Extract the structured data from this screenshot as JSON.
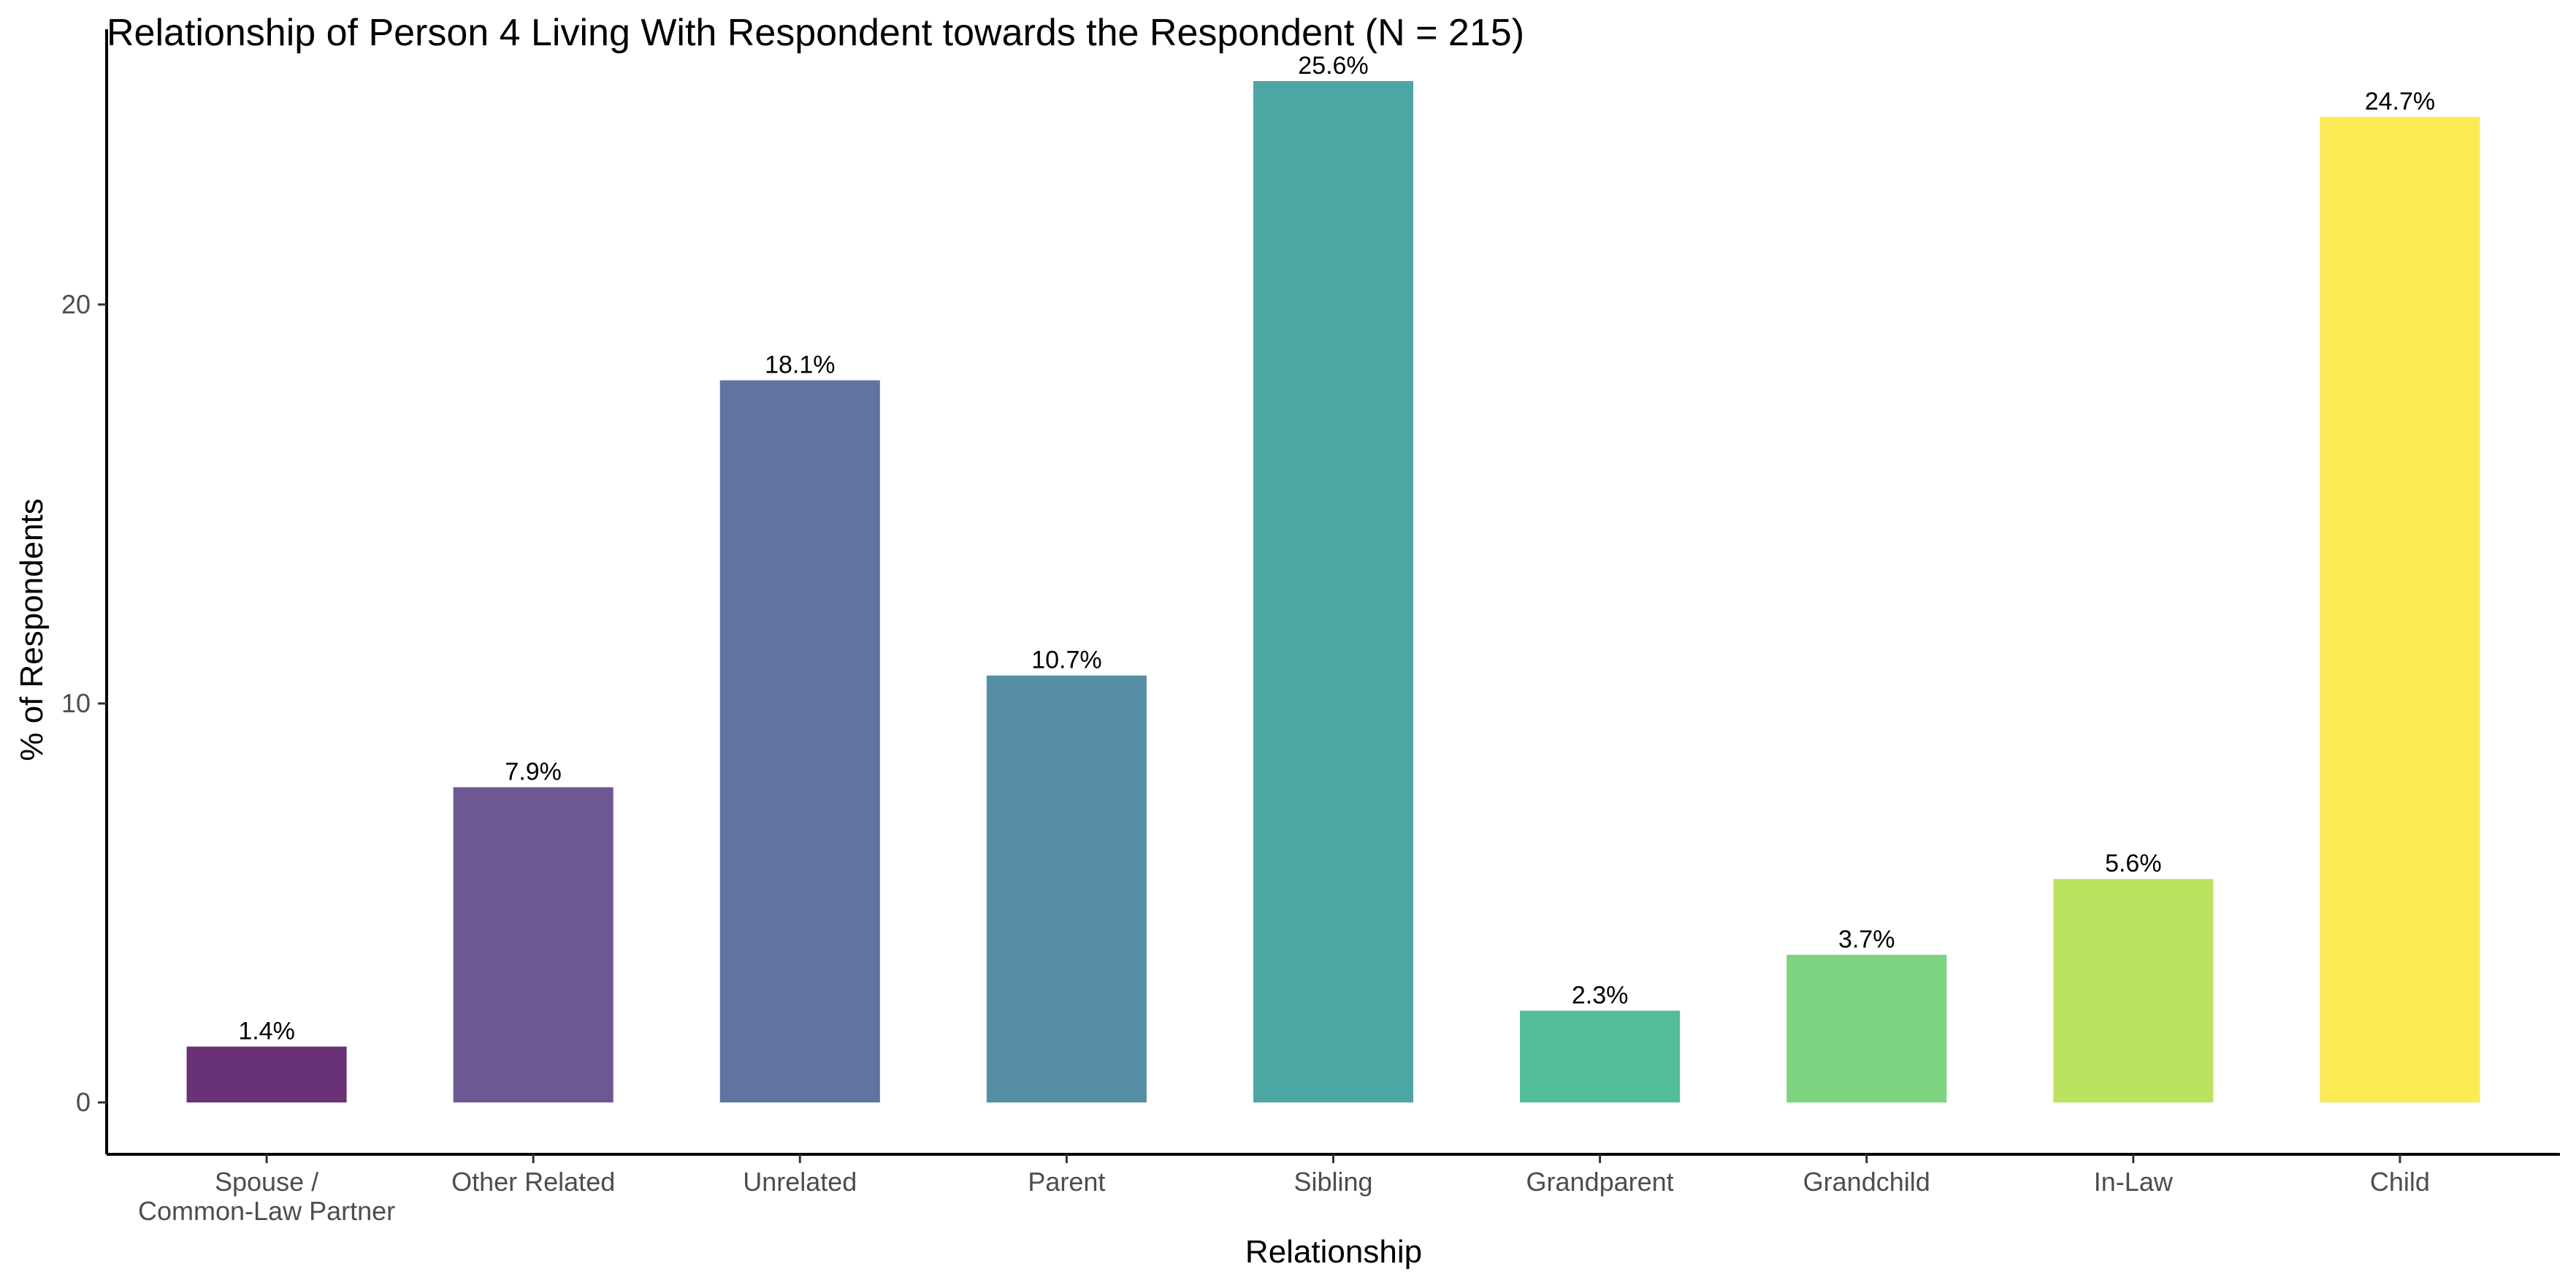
{
  "chart_data": {
    "type": "bar",
    "title": "Relationship of Person 4 Living With Respondent towards the Respondent (N = 215)",
    "xlabel": "Relationship",
    "ylabel": "% of Respondents",
    "categories": [
      [
        "Spouse /",
        "Common-Law Partner"
      ],
      [
        "Other Related"
      ],
      [
        "Unrelated"
      ],
      [
        "Parent"
      ],
      [
        "Sibling"
      ],
      [
        "Grandparent"
      ],
      [
        "Grandchild"
      ],
      [
        "In-Law"
      ],
      [
        "Child"
      ]
    ],
    "values": [
      1.4,
      7.9,
      18.1,
      10.7,
      25.6,
      2.3,
      3.7,
      5.6,
      24.7
    ],
    "value_labels": [
      "1.4%",
      "7.9%",
      "18.1%",
      "10.7%",
      "25.6%",
      "2.3%",
      "3.7%",
      "5.6%",
      "24.7%"
    ],
    "colors": [
      "#6a3276",
      "#6d5892",
      "#6173a0",
      "#568ea6",
      "#4ea6a4",
      "#53bd99",
      "#7dd37f",
      "#bae35f",
      "#fbea54"
    ],
    "yticks": [
      0,
      10,
      20
    ],
    "ylim": [
      -1.3,
      26.9
    ],
    "grid": false,
    "legend": "none"
  }
}
